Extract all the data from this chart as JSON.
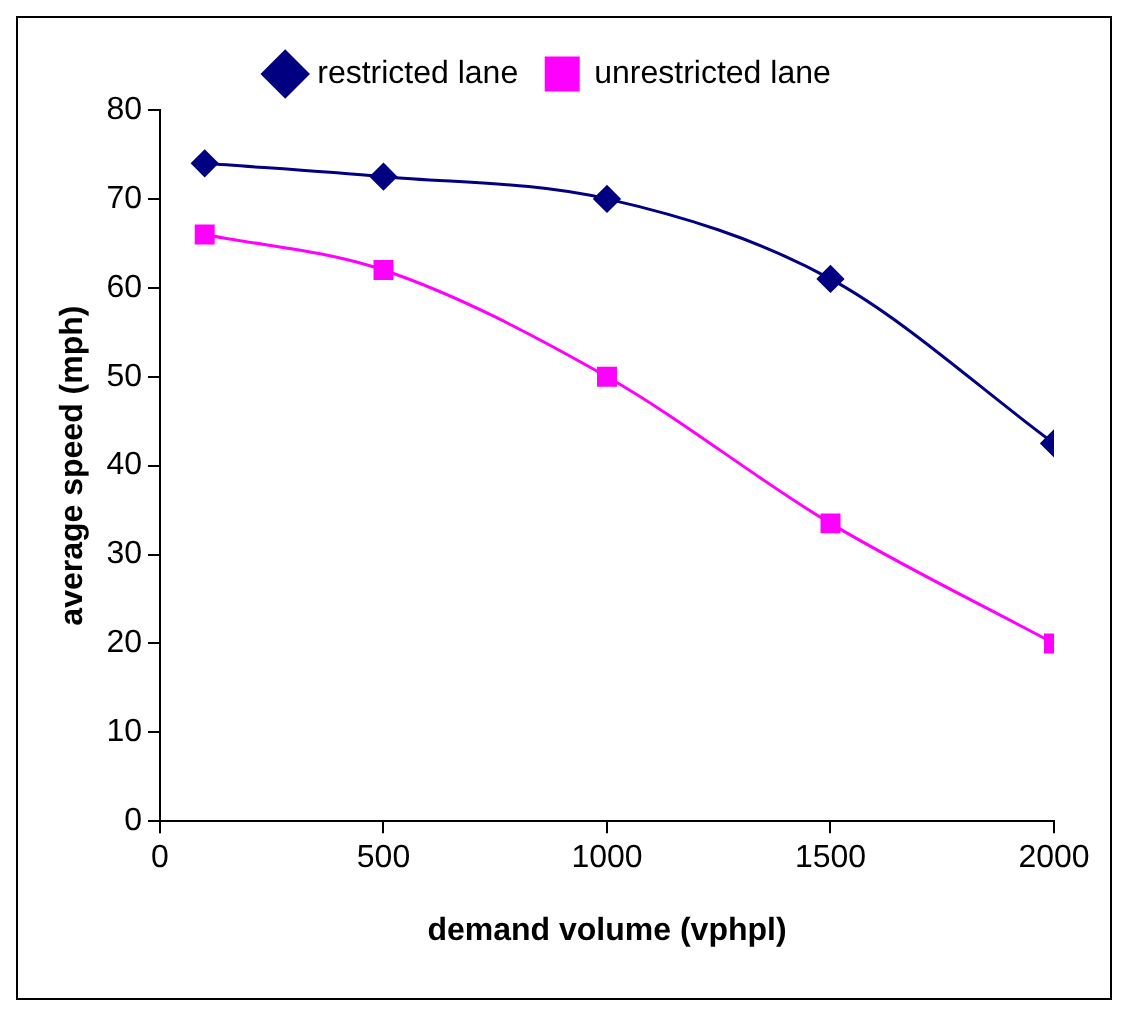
{
  "chart_data": {
    "type": "line",
    "xlabel": "demand volume (vphpl)",
    "ylabel": "average speed (mph)",
    "x": [
      100,
      500,
      1000,
      1500,
      2000
    ],
    "series": [
      {
        "name": "restricted lane",
        "color": "#000080",
        "marker": "diamond",
        "values": [
          74,
          72.5,
          70,
          61,
          42.5
        ]
      },
      {
        "name": "unrestricted lane",
        "color": "#ff00ff",
        "marker": "square",
        "values": [
          66,
          62,
          50,
          33.5,
          20
        ]
      }
    ],
    "xlim": [
      0,
      2000
    ],
    "xticks": [
      0,
      500,
      1000,
      1500,
      2000
    ],
    "ylim": [
      0,
      80
    ],
    "yticks": [
      0,
      10,
      20,
      30,
      40,
      50,
      60,
      70,
      80
    ],
    "grid": false,
    "legend": "top",
    "line_style": "solid"
  }
}
